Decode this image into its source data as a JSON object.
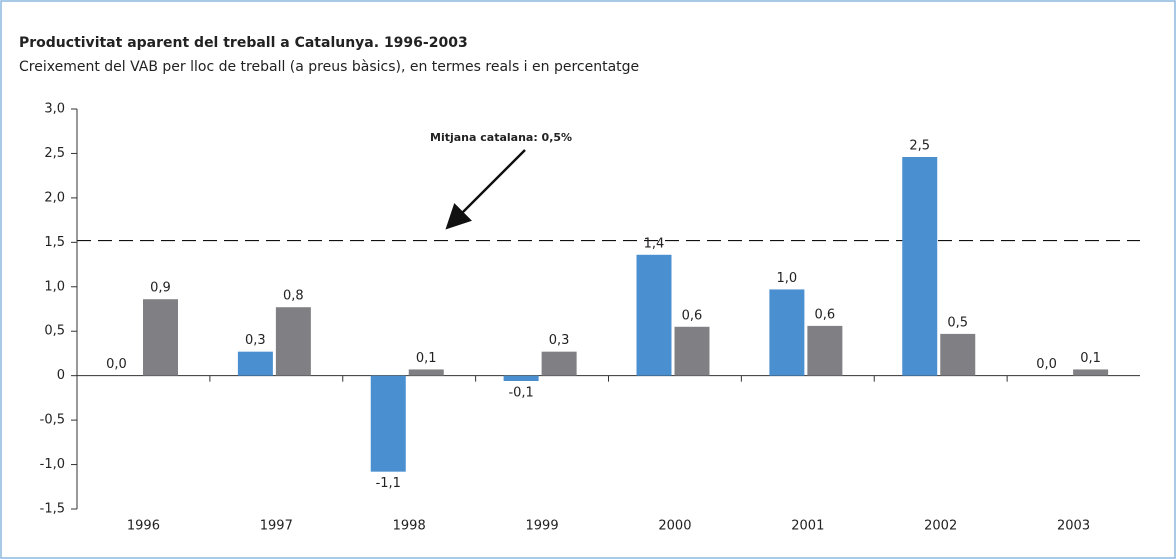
{
  "chart_data": {
    "type": "bar",
    "title": "Productivitat aparent del treball a Catalunya. 1996-2003",
    "subtitle": "Creixement del VAB per lloc de treball (a preus bàsics), en termes reals i en percentatge",
    "annotation": "Mitjana catalana: 0,5%",
    "reference_line": 1.52,
    "categories": [
      "1996",
      "1997",
      "1998",
      "1999",
      "2000",
      "2001",
      "2002",
      "2003"
    ],
    "series": [
      {
        "color": "#4a8fd0",
        "values": [
          0.0,
          0.27,
          -1.08,
          -0.06,
          1.36,
          0.97,
          2.46,
          0.0
        ],
        "value_labels": [
          "0,0",
          "0,3",
          "-1,1",
          "-0,1",
          "1,4",
          "1,0",
          "2,5",
          "0,0"
        ]
      },
      {
        "color": "#808084",
        "values": [
          0.86,
          0.77,
          0.07,
          0.27,
          0.55,
          0.56,
          0.47,
          0.07
        ],
        "value_labels": [
          "0,9",
          "0,8",
          "0,1",
          "0,3",
          "0,6",
          "0,6",
          "0,5",
          "0,1"
        ]
      }
    ],
    "ylim": [
      -1.5,
      3.0
    ],
    "yticks": [
      {
        "value": -1.5,
        "label": "-1,5"
      },
      {
        "value": -1.0,
        "label": "-1,0"
      },
      {
        "value": -0.5,
        "label": "-0,5"
      },
      0,
      {
        "value": 0.5,
        "label": "0,5"
      },
      {
        "value": 1.0,
        "label": "1,0"
      },
      {
        "value": 1.5,
        "label": "1,5"
      },
      {
        "value": 2.0,
        "label": "2,0"
      },
      {
        "value": 2.5,
        "label": "2,5"
      },
      {
        "value": 3.0,
        "label": "3,0"
      }
    ],
    "grid": false
  }
}
